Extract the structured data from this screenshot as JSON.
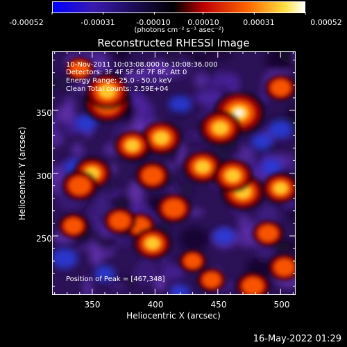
{
  "colorbar": {
    "labels": [
      "-0.00052",
      "-0.00031",
      "-0.00010",
      "0.00010",
      "0.00031",
      "0.00052"
    ],
    "units": "(photons cm⁻² s⁻¹ asec⁻²)",
    "colors": [
      "#0000ff",
      "#3a1ab0",
      "#000000",
      "#c00000",
      "#ff6a00",
      "#ffe040",
      "#ffffff"
    ]
  },
  "chart_data": {
    "type": "heatmap",
    "title": "Reconstructed RHESSI Image",
    "xlabel": "Heliocentric X (arcsec)",
    "ylabel": "Heliocentric Y (arcsec)",
    "xlim": [
      318,
      512
    ],
    "ylim": [
      203,
      397
    ],
    "x_ticks": [
      350,
      400,
      450,
      500
    ],
    "y_ticks": [
      250,
      300,
      350
    ],
    "zlim": [
      -0.00052,
      0.00052
    ],
    "peak": [
      467,
      348
    ],
    "hot_regions": [
      {
        "x": 467,
        "y": 348,
        "value": 0.00052
      },
      {
        "x": 362,
        "y": 356,
        "value": 0.00045
      },
      {
        "x": 452,
        "y": 336,
        "value": 0.00038
      },
      {
        "x": 405,
        "y": 328,
        "value": 0.00036
      },
      {
        "x": 382,
        "y": 322,
        "value": 0.0003
      },
      {
        "x": 350,
        "y": 300,
        "value": 0.00032
      },
      {
        "x": 340,
        "y": 290,
        "value": 0.00028
      },
      {
        "x": 438,
        "y": 305,
        "value": 0.00034
      },
      {
        "x": 470,
        "y": 285,
        "value": 0.0004
      },
      {
        "x": 462,
        "y": 298,
        "value": 0.00035
      },
      {
        "x": 398,
        "y": 298,
        "value": 0.00026
      },
      {
        "x": 415,
        "y": 272,
        "value": 0.00028
      },
      {
        "x": 388,
        "y": 258,
        "value": 0.00022
      },
      {
        "x": 372,
        "y": 262,
        "value": 0.00024
      },
      {
        "x": 500,
        "y": 288,
        "value": 0.0003
      },
      {
        "x": 398,
        "y": 244,
        "value": 0.00032
      },
      {
        "x": 335,
        "y": 258,
        "value": 0.0002
      },
      {
        "x": 490,
        "y": 252,
        "value": 0.00022
      },
      {
        "x": 478,
        "y": 210,
        "value": 0.00026
      },
      {
        "x": 503,
        "y": 225,
        "value": 0.00024
      },
      {
        "x": 445,
        "y": 215,
        "value": 0.00018
      },
      {
        "x": 362,
        "y": 365,
        "value": 0.0004
      },
      {
        "x": 340,
        "y": 383,
        "value": 0.00018
      },
      {
        "x": 500,
        "y": 368,
        "value": 0.00022
      },
      {
        "x": 430,
        "y": 230,
        "value": 0.00016
      }
    ],
    "cold_regions": [
      {
        "x": 328,
        "y": 232,
        "value": -0.0004
      },
      {
        "x": 420,
        "y": 355,
        "value": -0.0003
      },
      {
        "x": 345,
        "y": 340,
        "value": -0.00028
      },
      {
        "x": 485,
        "y": 325,
        "value": -0.00026
      },
      {
        "x": 500,
        "y": 335,
        "value": -0.00034
      },
      {
        "x": 455,
        "y": 250,
        "value": -0.00026
      },
      {
        "x": 360,
        "y": 220,
        "value": -0.00024
      },
      {
        "x": 420,
        "y": 205,
        "value": -0.00022
      },
      {
        "x": 335,
        "y": 305,
        "value": -0.0002
      },
      {
        "x": 493,
        "y": 305,
        "value": -0.00022
      }
    ]
  },
  "info": {
    "line1": "10-Nov-2011 10:03:08.000 to 10:08:36.000",
    "line2": "Detectors: 3F 4F 5F 6F 7F 8F, Att 0",
    "line3": "Energy Range: 25.0 - 50.0 keV",
    "line4": "Clean     Total counts: 2.59E+04",
    "peak": "Position of Peak = [467,348]"
  },
  "timestamp": "16-May-2022 01:29"
}
